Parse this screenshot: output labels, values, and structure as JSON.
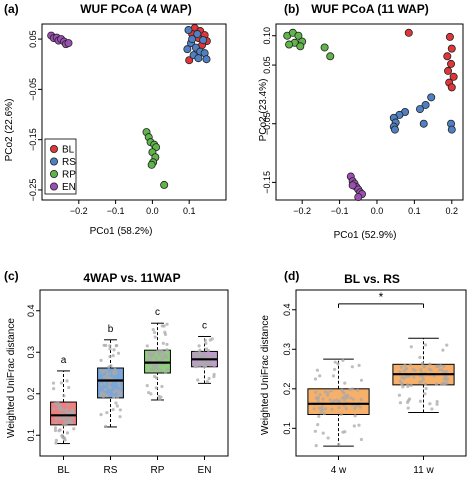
{
  "colors": {
    "BL": "#e0363a",
    "RS": "#4f80c4",
    "RP": "#5fb44a",
    "EN": "#9b4fb3",
    "box_4w": "#f7b06a",
    "box_11w": "#f7b06a",
    "box_BL": "#f08080",
    "box_RS": "#7aa6d8",
    "box_RP": "#8fcf7c",
    "box_EN": "#c49ad6",
    "jitter": "#aaaaaa"
  },
  "chart_data": [
    {
      "panel": "(a)",
      "type": "scatter",
      "title": "WUF PCoA (4 WAP)",
      "xlabel": "PCo1 (58.2%)",
      "ylabel": "PCo2 (22.6%)",
      "xlim": [
        -0.3,
        0.2
      ],
      "ylim": [
        -0.27,
        0.08
      ],
      "xticks": [
        -0.2,
        -0.1,
        0.0,
        0.1
      ],
      "xtick_labels": [
        "−0.2",
        "−0.1",
        "0.0",
        "0.1"
      ],
      "yticks": [
        0.05,
        -0.05,
        -0.15,
        -0.25
      ],
      "ytick_labels": [
        "0.05",
        "−0.05",
        "−0.15",
        "−0.25"
      ],
      "legend": {
        "placement": "bottom-left",
        "entries": [
          {
            "name": "BL",
            "color_key": "BL"
          },
          {
            "name": "RS",
            "color_key": "RS"
          },
          {
            "name": "RP",
            "color_key": "RP"
          },
          {
            "name": "EN",
            "color_key": "EN"
          }
        ]
      },
      "series": [
        {
          "name": "BL",
          "color_key": "BL",
          "points": [
            [
              0.115,
              0.072
            ],
            [
              0.13,
              0.066
            ],
            [
              0.108,
              0.06
            ],
            [
              0.142,
              0.058
            ],
            [
              0.125,
              0.052
            ],
            [
              0.148,
              0.046
            ],
            [
              0.1,
              0.008
            ],
            [
              0.135,
              0.038
            ]
          ]
        },
        {
          "name": "RS",
          "color_key": "RS",
          "points": [
            [
              0.098,
              0.068
            ],
            [
              0.122,
              0.06
            ],
            [
              0.138,
              0.048
            ],
            [
              0.105,
              0.042
            ],
            [
              0.118,
              0.033
            ],
            [
              0.095,
              0.03
            ],
            [
              0.13,
              0.025
            ],
            [
              0.142,
              0.022
            ],
            [
              0.112,
              0.018
            ],
            [
              0.125,
              0.012
            ],
            [
              0.147,
              0.01
            ],
            [
              0.108,
              0.05
            ]
          ]
        },
        {
          "name": "RP",
          "color_key": "RP",
          "points": [
            [
              -0.016,
              -0.135
            ],
            [
              -0.01,
              -0.145
            ],
            [
              -0.005,
              -0.155
            ],
            [
              0.005,
              -0.16
            ],
            [
              0.01,
              -0.165
            ],
            [
              0.0,
              -0.175
            ],
            [
              0.008,
              -0.185
            ],
            [
              0.002,
              -0.195
            ],
            [
              -0.002,
              -0.2
            ],
            [
              0.032,
              -0.24
            ]
          ]
        },
        {
          "name": "EN",
          "color_key": "EN",
          "points": [
            [
              -0.275,
              0.057
            ],
            [
              -0.268,
              0.052
            ],
            [
              -0.26,
              0.053
            ],
            [
              -0.255,
              0.047
            ],
            [
              -0.248,
              0.05
            ],
            [
              -0.24,
              0.045
            ],
            [
              -0.235,
              0.04
            ],
            [
              -0.228,
              0.042
            ]
          ]
        }
      ]
    },
    {
      "panel": "(b)",
      "type": "scatter",
      "title": "WUF PCoA (11 WAP)",
      "xlabel": "PCo1 (52.9%)",
      "ylabel": "PCo2 (23.4%)",
      "xlim": [
        -0.27,
        0.23
      ],
      "ylim": [
        -0.18,
        0.12
      ],
      "xticks": [
        -0.2,
        -0.1,
        0.0,
        0.1,
        0.2
      ],
      "xtick_labels": [
        "−0.2",
        "−0.1",
        "0.0",
        "0.1",
        "0.2"
      ],
      "yticks": [
        0.1,
        0.05,
        -0.05,
        -0.15
      ],
      "ytick_labels": [
        "0.10",
        "0.05",
        "−0.05",
        "−0.15"
      ],
      "series": [
        {
          "name": "BL",
          "color_key": "BL",
          "points": [
            [
              0.085,
              0.105
            ],
            [
              0.195,
              0.098
            ],
            [
              0.2,
              0.078
            ],
            [
              0.188,
              0.065
            ],
            [
              0.198,
              0.052
            ],
            [
              0.19,
              0.04
            ],
            [
              0.205,
              0.03
            ],
            [
              0.193,
              0.02
            ],
            [
              0.2,
              0.012
            ]
          ]
        },
        {
          "name": "RS",
          "color_key": "RS",
          "points": [
            [
              0.145,
              -0.005
            ],
            [
              0.13,
              -0.018
            ],
            [
              0.115,
              -0.025
            ],
            [
              0.075,
              -0.03
            ],
            [
              0.06,
              -0.035
            ],
            [
              0.045,
              -0.04
            ],
            [
              0.05,
              -0.048
            ],
            [
              0.045,
              -0.055
            ],
            [
              0.048,
              -0.06
            ],
            [
              0.125,
              -0.05
            ],
            [
              0.198,
              -0.05
            ],
            [
              0.2,
              -0.06
            ]
          ]
        },
        {
          "name": "RP",
          "color_key": "RP",
          "points": [
            [
              -0.24,
              0.1
            ],
            [
              -0.225,
              0.105
            ],
            [
              -0.21,
              0.1
            ],
            [
              -0.2,
              0.09
            ],
            [
              -0.22,
              0.088
            ],
            [
              -0.235,
              0.085
            ],
            [
              -0.205,
              0.082
            ],
            [
              -0.14,
              0.08
            ],
            [
              -0.125,
              0.065
            ]
          ]
        },
        {
          "name": "EN",
          "color_key": "EN",
          "points": [
            [
              -0.07,
              -0.14
            ],
            [
              -0.065,
              -0.148
            ],
            [
              -0.06,
              -0.152
            ],
            [
              -0.055,
              -0.158
            ],
            [
              -0.05,
              -0.162
            ],
            [
              -0.045,
              -0.167
            ],
            [
              -0.04,
              -0.17
            ],
            [
              -0.065,
              -0.155
            ],
            [
              -0.05,
              -0.175
            ]
          ]
        }
      ]
    },
    {
      "panel": "(c)",
      "type": "box",
      "title": "4WAP vs. 11WAP",
      "ylabel": "Weighted UniFrac distance",
      "xlabel": "",
      "ylim": [
        0.05,
        0.45
      ],
      "yticks": [
        0.1,
        0.2,
        0.3,
        0.4
      ],
      "ytick_labels": [
        "0.1",
        "0.2",
        "0.3",
        "0.4"
      ],
      "categories": [
        "BL",
        "RS",
        "RP",
        "EN"
      ],
      "boxes": [
        {
          "category": "BL",
          "color_key": "box_BL",
          "whisker_low": 0.08,
          "q1": 0.125,
          "median": 0.148,
          "q3": 0.18,
          "whisker_high": 0.255,
          "letter": "a"
        },
        {
          "category": "RS",
          "color_key": "box_RS",
          "whisker_low": 0.12,
          "q1": 0.19,
          "median": 0.232,
          "q3": 0.262,
          "whisker_high": 0.33,
          "letter": "b"
        },
        {
          "category": "RP",
          "color_key": "box_RP",
          "whisker_low": 0.185,
          "q1": 0.25,
          "median": 0.275,
          "q3": 0.305,
          "whisker_high": 0.37,
          "letter": "c"
        },
        {
          "category": "EN",
          "color_key": "box_EN",
          "whisker_low": 0.225,
          "q1": 0.265,
          "median": 0.283,
          "q3": 0.302,
          "whisker_high": 0.338,
          "letter": "c"
        }
      ]
    },
    {
      "panel": "(d)",
      "type": "box",
      "title": "BL vs. RS",
      "ylabel": "Weighted UniFrac distance",
      "xlabel": "",
      "ylim": [
        0.03,
        0.45
      ],
      "yticks": [
        0.1,
        0.2,
        0.3,
        0.4
      ],
      "ytick_labels": [
        "0.1",
        "0.2",
        "0.3",
        "0.4"
      ],
      "categories": [
        "4 w",
        "11 w"
      ],
      "significance": "*",
      "boxes": [
        {
          "category": "4 w",
          "color_key": "box_4w",
          "whisker_low": 0.055,
          "q1": 0.135,
          "median": 0.162,
          "q3": 0.2,
          "whisker_high": 0.275
        },
        {
          "category": "11 w",
          "color_key": "box_11w",
          "whisker_low": 0.14,
          "q1": 0.21,
          "median": 0.237,
          "q3": 0.262,
          "whisker_high": 0.328
        }
      ]
    }
  ]
}
